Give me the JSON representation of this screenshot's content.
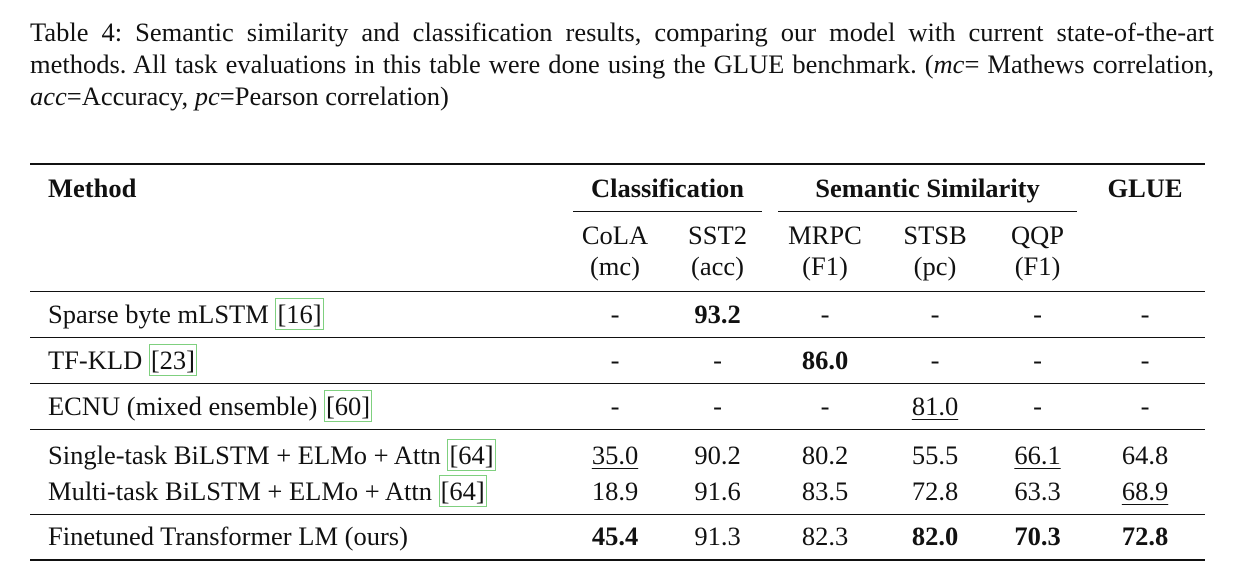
{
  "caption": [
    "Table 4: Semantic similarity and classification results, comparing our model with current state-of-the-art methods. All task evaluations in this table were done using the GLUE benchmark. (",
    "mc",
    "= Mathews correlation, ",
    "acc",
    "=Accuracy, ",
    "pc",
    "=Pearson correlation)"
  ],
  "table": {
    "headers": [
      "Method",
      "Classification",
      "Semantic Similarity",
      "GLUE"
    ],
    "subheaders": [
      {
        "name": "CoLA",
        "metric": "(mc)"
      },
      {
        "name": "SST2",
        "metric": "(acc)"
      },
      {
        "name": "MRPC",
        "metric": "(F1)"
      },
      {
        "name": "STSB",
        "metric": "(pc)"
      },
      {
        "name": "QQP",
        "metric": "(F1)"
      }
    ],
    "rows": [
      {
        "method": "Sparse byte mLSTM ",
        "cite": "[16]",
        "cells": [
          "-",
          "93.2",
          "-",
          "-",
          "-",
          "-"
        ]
      },
      {
        "method": "TF-KLD ",
        "cite": "[23]",
        "cells": [
          "-",
          "-",
          "86.0",
          "-",
          "-",
          "-"
        ]
      },
      {
        "method": "ECNU (mixed ensemble) ",
        "cite": "[60]",
        "cells": [
          "-",
          "-",
          "-",
          "81.0",
          "-",
          "-"
        ]
      },
      {
        "method": "Single-task BiLSTM + ELMo + Attn ",
        "cite": "[64]",
        "cells": [
          "35.0",
          "90.2",
          "80.2",
          "55.5",
          "66.1",
          "64.8"
        ]
      },
      {
        "method": "Multi-task BiLSTM + ELMo + Attn ",
        "cite": "[64]",
        "cells": [
          "18.9",
          "91.6",
          "83.5",
          "72.8",
          "63.3",
          "68.9"
        ]
      },
      {
        "method": "Finetuned Transformer LM (ours)",
        "cite": null,
        "cells": [
          "45.4",
          "91.3",
          "82.3",
          "82.0",
          "70.3",
          "72.8"
        ]
      }
    ]
  }
}
